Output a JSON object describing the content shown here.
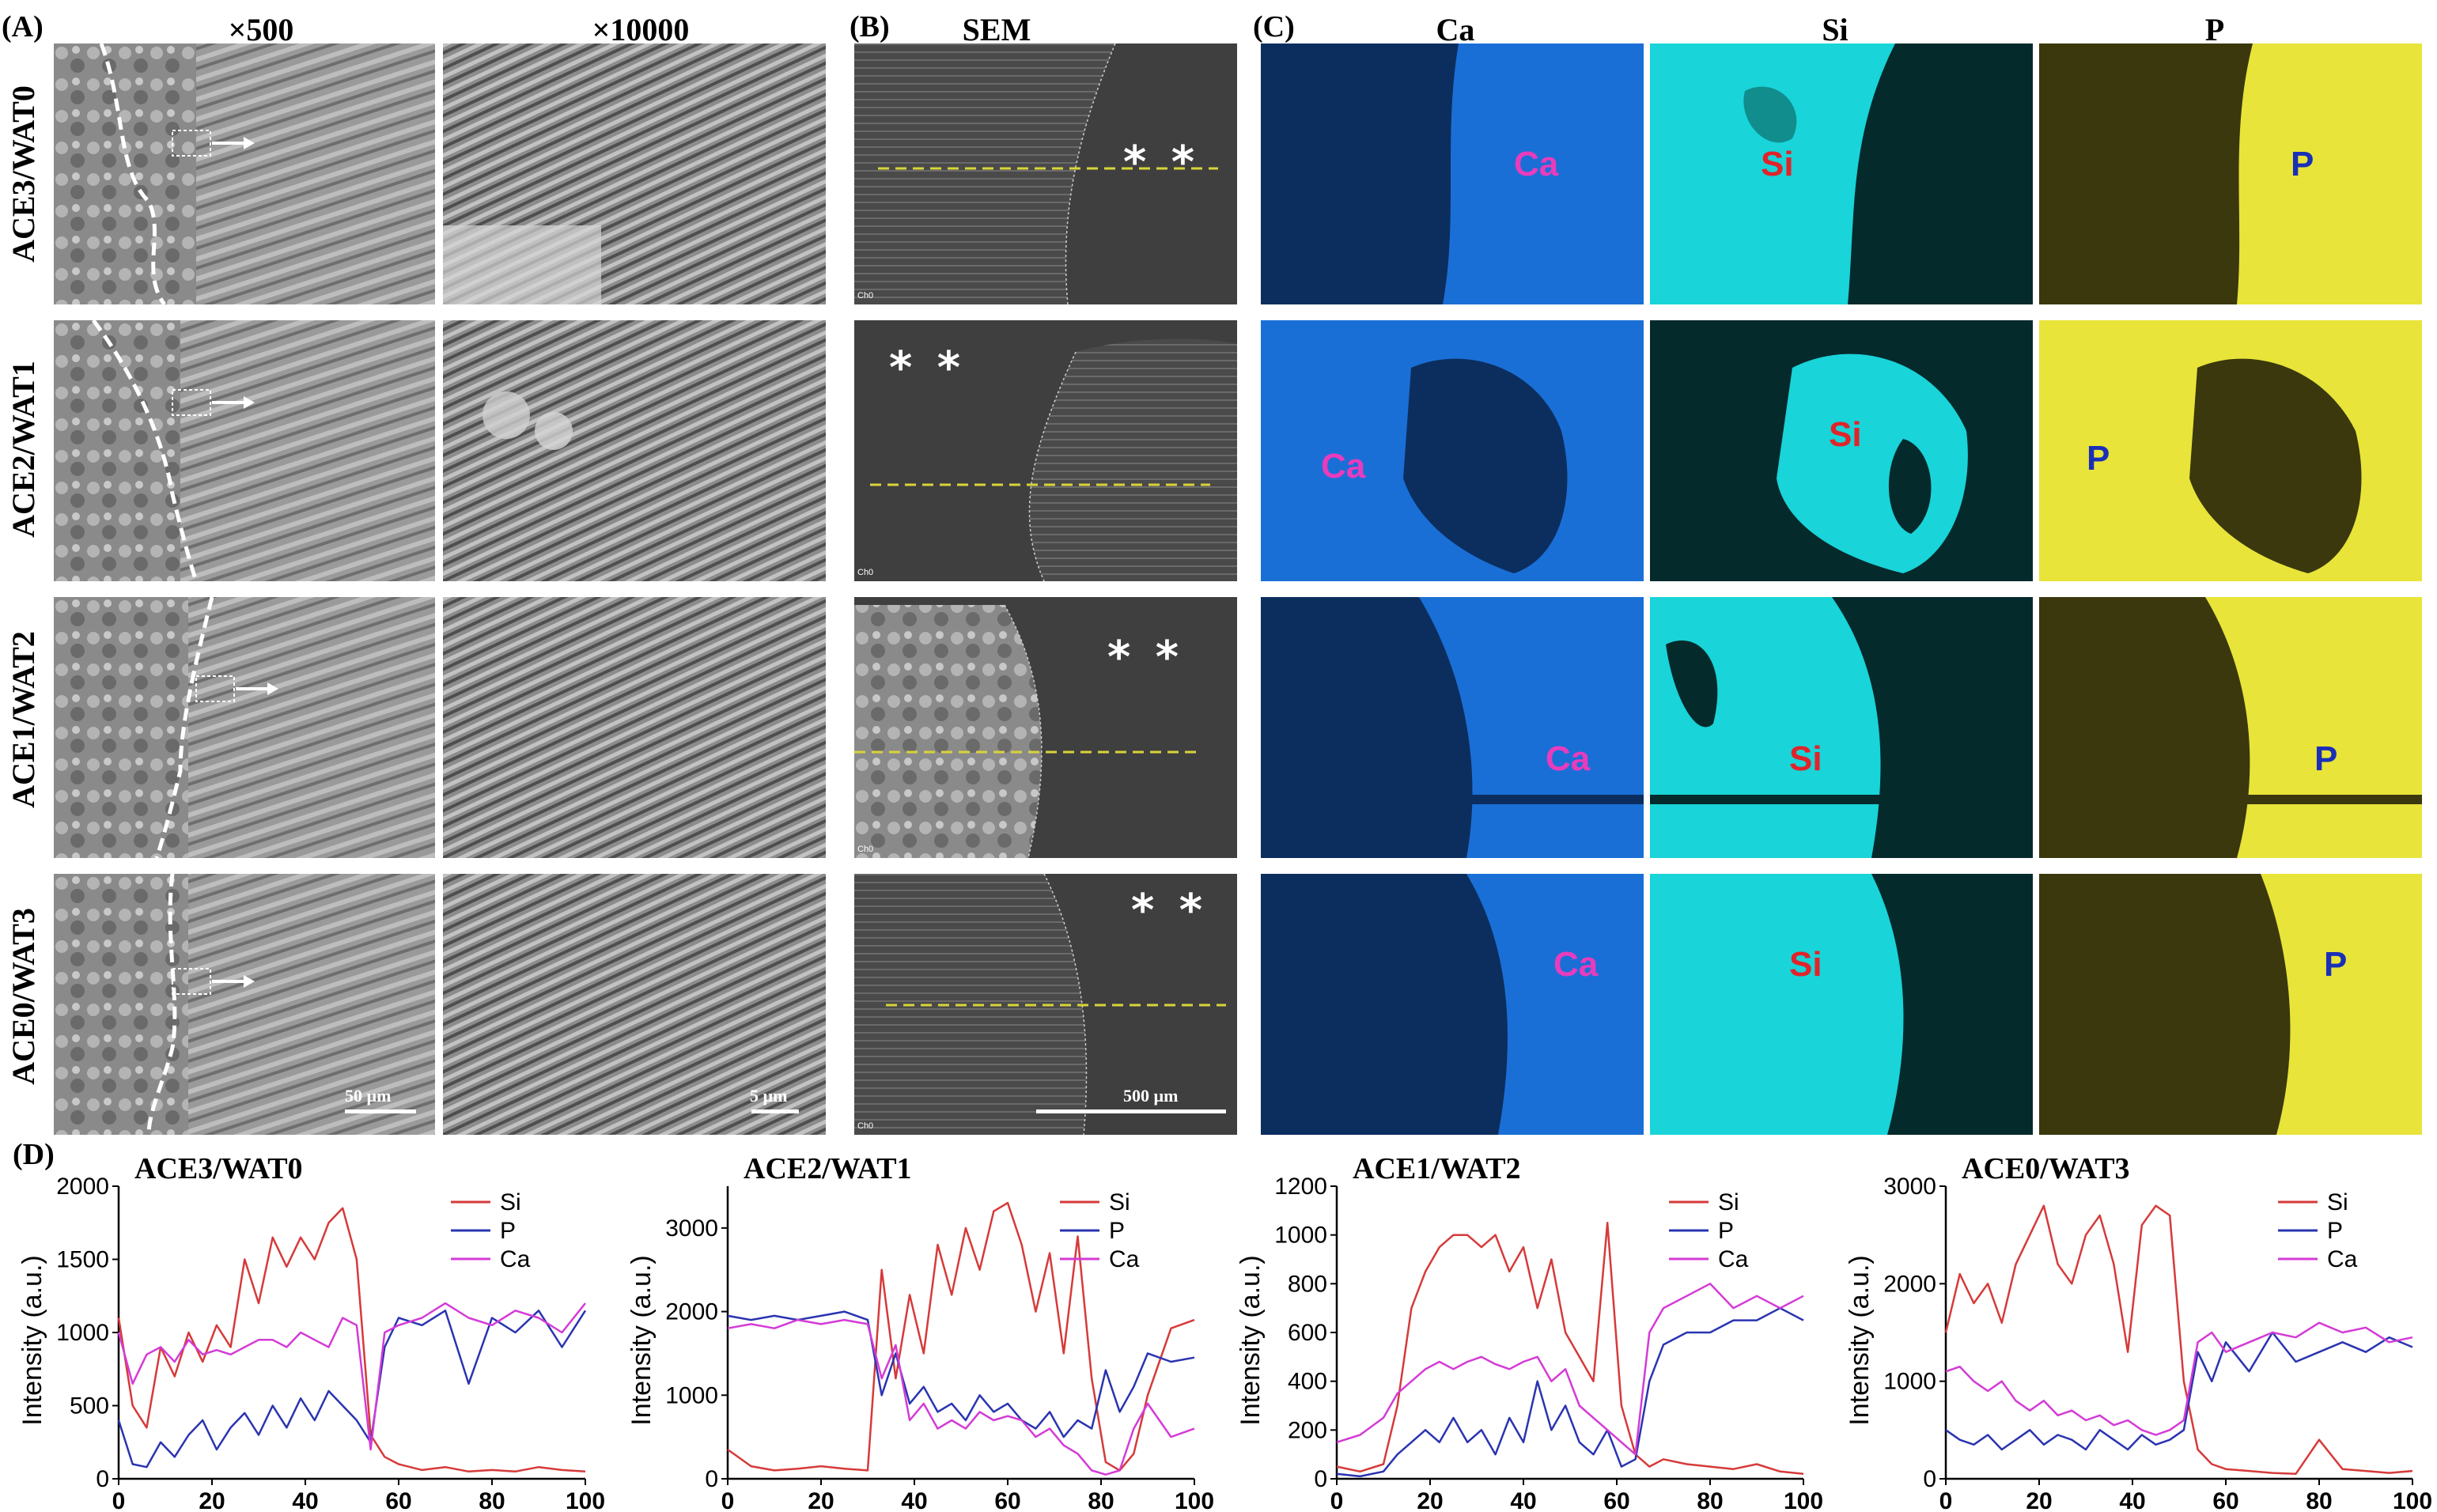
{
  "panel_A": {
    "letter": "(A)",
    "col_500": "×500",
    "col_10000": "×10000",
    "rows": [
      "ACE3/WAT0",
      "ACE2/WAT1",
      "ACE1/WAT2",
      "ACE0/WAT3"
    ],
    "scale_500": "50 µm",
    "scale_10000": "5 µm"
  },
  "panel_B": {
    "letter": "(B)",
    "title": "SEM",
    "stars": "* *",
    "scale": "500 µm",
    "corner_tag": "Ch0"
  },
  "panel_C": {
    "letter": "(C)",
    "col_ca": "Ca",
    "col_si": "Si",
    "col_p": "P",
    "label_ca": "Ca",
    "label_si": "Si",
    "label_p": "P",
    "colors": {
      "ca_map": "#1a6fd6",
      "si_map": "#19d4d8",
      "p_map": "#e8e43a",
      "ca_label": "#e83cbd",
      "si_label": "#e0242a",
      "p_label": "#1a2fb8"
    }
  },
  "panel_D": {
    "letter": "(D)",
    "ylabel": "Intensity (a.u.)",
    "xticks": [
      "0",
      "20",
      "40",
      "60",
      "80",
      "100"
    ]
  },
  "chart_data": [
    {
      "type": "line",
      "title": "ACE3/WAT0",
      "xlabel": "",
      "ylabel": "Intensity (a.u.)",
      "xlim": [
        0,
        100
      ],
      "ylim": [
        0,
        2000
      ],
      "yticks": [
        0,
        500,
        1000,
        1500,
        2000
      ],
      "legend": "top-right",
      "series": [
        {
          "name": "Si",
          "color": "#d63a3a",
          "x": [
            0,
            3,
            6,
            9,
            12,
            15,
            18,
            21,
            24,
            27,
            30,
            33,
            36,
            39,
            42,
            45,
            48,
            51,
            54,
            57,
            60,
            65,
            70,
            75,
            80,
            85,
            90,
            95,
            100
          ],
          "values": [
            1100,
            500,
            350,
            900,
            700,
            1000,
            800,
            1050,
            900,
            1500,
            1200,
            1650,
            1450,
            1650,
            1500,
            1750,
            1850,
            1500,
            300,
            150,
            100,
            60,
            80,
            50,
            60,
            50,
            80,
            60,
            50
          ]
        },
        {
          "name": "P",
          "color": "#2a34b0",
          "x": [
            0,
            3,
            6,
            9,
            12,
            15,
            18,
            21,
            24,
            27,
            30,
            33,
            36,
            39,
            42,
            45,
            48,
            51,
            54,
            57,
            60,
            65,
            70,
            75,
            80,
            85,
            90,
            95,
            100
          ],
          "values": [
            400,
            100,
            80,
            250,
            150,
            300,
            400,
            200,
            350,
            450,
            300,
            500,
            350,
            550,
            400,
            600,
            500,
            400,
            250,
            900,
            1100,
            1050,
            1150,
            650,
            1100,
            1000,
            1150,
            900,
            1150
          ]
        },
        {
          "name": "Ca",
          "color": "#d43bd6",
          "x": [
            0,
            3,
            6,
            9,
            12,
            15,
            18,
            21,
            24,
            27,
            30,
            33,
            36,
            39,
            42,
            45,
            48,
            51,
            54,
            57,
            60,
            65,
            70,
            75,
            80,
            85,
            90,
            95,
            100
          ],
          "values": [
            1000,
            650,
            850,
            900,
            800,
            950,
            850,
            880,
            850,
            900,
            950,
            950,
            900,
            1000,
            950,
            900,
            1100,
            1050,
            200,
            1000,
            1050,
            1100,
            1200,
            1100,
            1050,
            1150,
            1100,
            1000,
            1200
          ]
        }
      ]
    },
    {
      "type": "line",
      "title": "ACE2/WAT1",
      "xlabel": "",
      "ylabel": "Intensity (a.u.)",
      "xlim": [
        0,
        100
      ],
      "ylim": [
        0,
        3500
      ],
      "yticks": [
        0,
        1000,
        2000,
        3000
      ],
      "legend": "top-right",
      "series": [
        {
          "name": "Si",
          "color": "#d63a3a",
          "x": [
            0,
            5,
            10,
            15,
            20,
            25,
            30,
            33,
            36,
            39,
            42,
            45,
            48,
            51,
            54,
            57,
            60,
            63,
            66,
            69,
            72,
            75,
            78,
            81,
            84,
            87,
            90,
            95,
            100
          ],
          "values": [
            350,
            150,
            100,
            120,
            150,
            120,
            100,
            2500,
            1200,
            2200,
            1500,
            2800,
            2200,
            3000,
            2500,
            3200,
            3300,
            2800,
            2000,
            2700,
            1500,
            2900,
            1200,
            200,
            100,
            300,
            1000,
            1800,
            1900
          ]
        },
        {
          "name": "P",
          "color": "#2a34b0",
          "x": [
            0,
            5,
            10,
            15,
            20,
            25,
            30,
            33,
            36,
            39,
            42,
            45,
            48,
            51,
            54,
            57,
            60,
            63,
            66,
            69,
            72,
            75,
            78,
            81,
            84,
            87,
            90,
            95,
            100
          ],
          "values": [
            1950,
            1900,
            1950,
            1900,
            1950,
            2000,
            1900,
            1000,
            1500,
            900,
            1100,
            800,
            900,
            700,
            1000,
            800,
            900,
            700,
            600,
            800,
            500,
            700,
            600,
            1300,
            800,
            1100,
            1500,
            1400,
            1450
          ]
        },
        {
          "name": "Ca",
          "color": "#d43bd6",
          "x": [
            0,
            5,
            10,
            15,
            20,
            25,
            30,
            33,
            36,
            39,
            42,
            45,
            48,
            51,
            54,
            57,
            60,
            63,
            66,
            69,
            72,
            75,
            78,
            81,
            84,
            87,
            90,
            95,
            100
          ],
          "values": [
            1800,
            1850,
            1800,
            1900,
            1850,
            1900,
            1850,
            1200,
            1600,
            700,
            900,
            600,
            700,
            600,
            800,
            700,
            750,
            700,
            500,
            600,
            400,
            300,
            100,
            50,
            100,
            600,
            900,
            500,
            600
          ]
        }
      ]
    },
    {
      "type": "line",
      "title": "ACE1/WAT2",
      "xlabel": "",
      "ylabel": "Intensity (a.u.)",
      "xlim": [
        0,
        100
      ],
      "ylim": [
        0,
        1200
      ],
      "yticks": [
        0,
        200,
        400,
        600,
        800,
        1000,
        1200
      ],
      "legend": "top-right",
      "series": [
        {
          "name": "Si",
          "color": "#d63a3a",
          "x": [
            0,
            5,
            10,
            13,
            16,
            19,
            22,
            25,
            28,
            31,
            34,
            37,
            40,
            43,
            46,
            49,
            52,
            55,
            58,
            61,
            64,
            67,
            70,
            75,
            80,
            85,
            90,
            95,
            100
          ],
          "values": [
            50,
            30,
            60,
            300,
            700,
            850,
            950,
            1000,
            1000,
            950,
            1000,
            850,
            950,
            700,
            900,
            600,
            500,
            400,
            1050,
            300,
            100,
            50,
            80,
            60,
            50,
            40,
            60,
            30,
            20
          ]
        },
        {
          "name": "P",
          "color": "#2a34b0",
          "x": [
            0,
            5,
            10,
            13,
            16,
            19,
            22,
            25,
            28,
            31,
            34,
            37,
            40,
            43,
            46,
            49,
            52,
            55,
            58,
            61,
            64,
            67,
            70,
            75,
            80,
            85,
            90,
            95,
            100
          ],
          "values": [
            20,
            10,
            30,
            100,
            150,
            200,
            150,
            250,
            150,
            200,
            100,
            250,
            150,
            400,
            200,
            300,
            150,
            100,
            200,
            50,
            80,
            400,
            550,
            600,
            600,
            650,
            650,
            700,
            650
          ]
        },
        {
          "name": "Ca",
          "color": "#d43bd6",
          "x": [
            0,
            5,
            10,
            13,
            16,
            19,
            22,
            25,
            28,
            31,
            34,
            37,
            40,
            43,
            46,
            49,
            52,
            55,
            58,
            61,
            64,
            67,
            70,
            75,
            80,
            85,
            90,
            95,
            100
          ],
          "values": [
            150,
            180,
            250,
            350,
            400,
            450,
            480,
            450,
            480,
            500,
            470,
            450,
            480,
            500,
            400,
            450,
            300,
            250,
            200,
            150,
            100,
            600,
            700,
            750,
            800,
            700,
            750,
            700,
            750
          ]
        }
      ]
    },
    {
      "type": "line",
      "title": "ACE0/WAT3",
      "xlabel": "",
      "ylabel": "Intensity (a.u.)",
      "xlim": [
        0,
        100
      ],
      "ylim": [
        0,
        3000
      ],
      "yticks": [
        0,
        1000,
        2000,
        3000
      ],
      "legend": "top-right",
      "series": [
        {
          "name": "Si",
          "color": "#d63a3a",
          "x": [
            0,
            3,
            6,
            9,
            12,
            15,
            18,
            21,
            24,
            27,
            30,
            33,
            36,
            39,
            42,
            45,
            48,
            51,
            54,
            57,
            60,
            65,
            70,
            75,
            80,
            85,
            90,
            95,
            100
          ],
          "values": [
            1500,
            2100,
            1800,
            2000,
            1600,
            2200,
            2500,
            2800,
            2200,
            2000,
            2500,
            2700,
            2200,
            1300,
            2600,
            2800,
            2700,
            1000,
            300,
            150,
            100,
            80,
            60,
            50,
            400,
            100,
            80,
            60,
            80
          ]
        },
        {
          "name": "P",
          "color": "#2a34b0",
          "x": [
            0,
            3,
            6,
            9,
            12,
            15,
            18,
            21,
            24,
            27,
            30,
            33,
            36,
            39,
            42,
            45,
            48,
            51,
            54,
            57,
            60,
            65,
            70,
            75,
            80,
            85,
            90,
            95,
            100
          ],
          "values": [
            500,
            400,
            350,
            450,
            300,
            400,
            500,
            350,
            450,
            400,
            300,
            500,
            400,
            300,
            450,
            350,
            400,
            500,
            1300,
            1000,
            1400,
            1100,
            1500,
            1200,
            1300,
            1400,
            1300,
            1450,
            1350
          ]
        },
        {
          "name": "Ca",
          "color": "#d43bd6",
          "x": [
            0,
            3,
            6,
            9,
            12,
            15,
            18,
            21,
            24,
            27,
            30,
            33,
            36,
            39,
            42,
            45,
            48,
            51,
            54,
            57,
            60,
            65,
            70,
            75,
            80,
            85,
            90,
            95,
            100
          ],
          "values": [
            1100,
            1150,
            1000,
            900,
            1000,
            800,
            700,
            800,
            650,
            700,
            600,
            650,
            550,
            600,
            500,
            450,
            500,
            600,
            1400,
            1500,
            1300,
            1400,
            1500,
            1450,
            1600,
            1500,
            1550,
            1400,
            1450
          ]
        }
      ]
    }
  ]
}
